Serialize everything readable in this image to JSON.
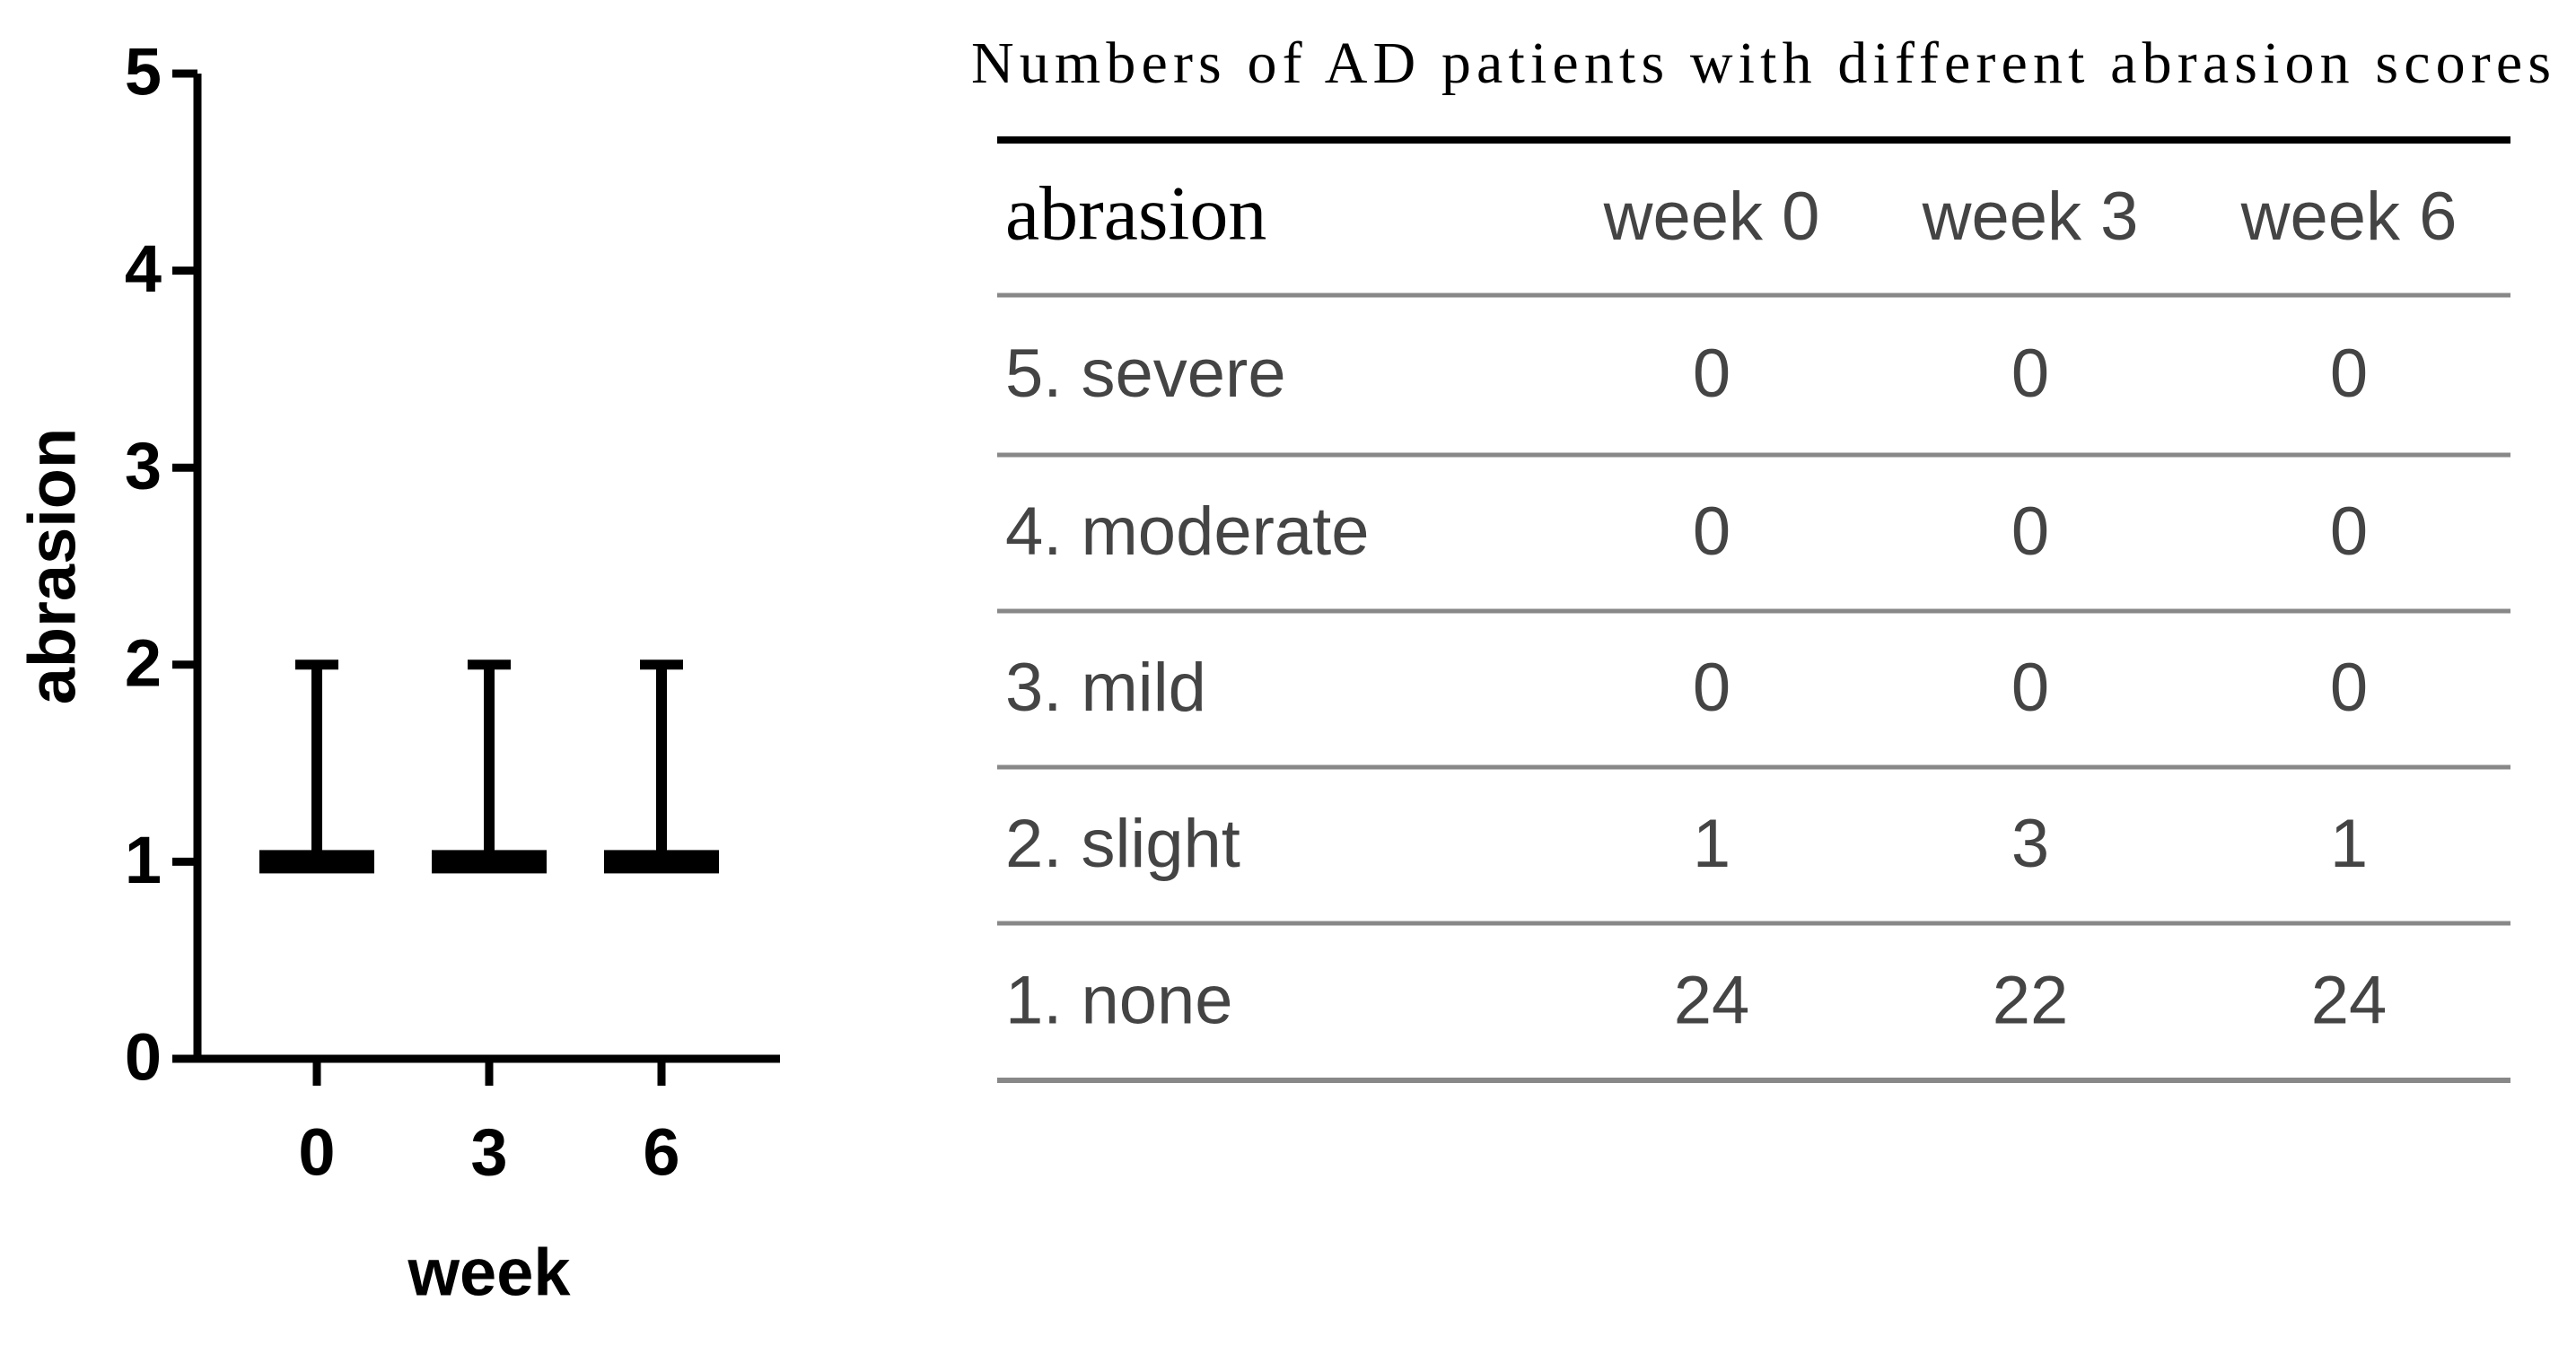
{
  "chart_data": {
    "type": "median_range",
    "ylabel": "abrasion",
    "xlabel": "week",
    "categories": [
      "0",
      "3",
      "6"
    ],
    "values": [
      1,
      1,
      1
    ],
    "range_max": [
      2,
      2,
      2
    ],
    "color": "#000000",
    "ylim": [
      0,
      5
    ],
    "yticks": [
      0,
      1,
      2,
      3,
      4,
      5
    ],
    "grid": false
  },
  "table": {
    "title": "Numbers of AD patients with different abrasion scores",
    "header": [
      "abrasion",
      "week 0",
      "week 3",
      "week 6"
    ],
    "rows": [
      [
        "5. severe",
        0,
        0,
        0
      ],
      [
        "4. moderate",
        0,
        0,
        0
      ],
      [
        "3. mild",
        0,
        0,
        0
      ],
      [
        "2. slight",
        1,
        3,
        1
      ],
      [
        "1. none",
        24,
        22,
        24
      ]
    ]
  }
}
